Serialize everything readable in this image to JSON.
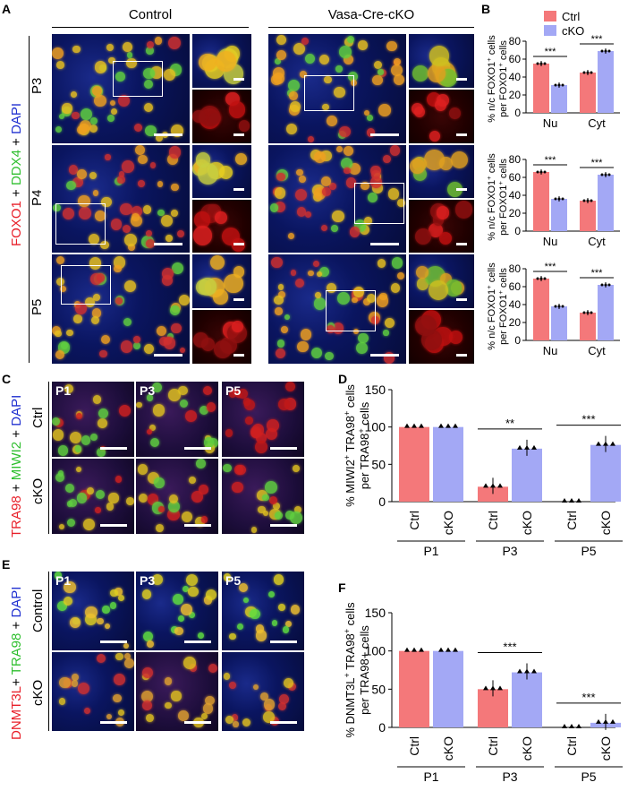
{
  "panels": {
    "A": {
      "letter": "A",
      "group_control": "Control",
      "group_cko": "Vasa-Cre-cKO",
      "stain_label": [
        "FOXO1",
        " + ",
        "DDX4",
        " + ",
        "DAPI"
      ],
      "stain_colors": [
        "#e8202a",
        "#000000",
        "#2fbf2f",
        "#000000",
        "#2030d0"
      ],
      "rows": [
        "P3",
        "P4",
        "P5"
      ]
    },
    "B": {
      "letter": "B"
    },
    "C": {
      "letter": "C",
      "stain_label": [
        "TRA98",
        " + ",
        "MIWI2",
        " + ",
        "DAPI"
      ],
      "stain_colors": [
        "#e8202a",
        "#000000",
        "#2fbf2f",
        "#000000",
        "#2030d0"
      ],
      "rows": [
        "Ctrl",
        "cKO"
      ],
      "cols": [
        "P1",
        "P3",
        "P5"
      ]
    },
    "D": {
      "letter": "D"
    },
    "E": {
      "letter": "E",
      "stain_label": [
        "DNMT3L",
        "+ ",
        "TRA98",
        " + ",
        "DAPI"
      ],
      "stain_colors": [
        "#e8202a",
        "#000000",
        "#2fbf2f",
        "#000000",
        "#2030d0"
      ],
      "rows": [
        "Control",
        "cKO"
      ],
      "cols": [
        "P1",
        "P3",
        "P5"
      ]
    },
    "F": {
      "letter": "F"
    }
  },
  "chart_data": [
    {
      "id": "B1",
      "type": "bar",
      "legend": [
        {
          "name": "Ctrl",
          "color": "#f4787a"
        },
        {
          "name": "cKO",
          "color": "#a3a8f5"
        }
      ],
      "categories": [
        "Nu",
        "Cyt"
      ],
      "series": [
        {
          "name": "Ctrl",
          "values": [
            55,
            45
          ]
        },
        {
          "name": "cKO",
          "values": [
            31,
            69
          ]
        }
      ],
      "ylabel": [
        "% n/c FOXO1",
        "+",
        " cells"
      ],
      "ylabel2": [
        "per FOXO1",
        "+",
        " cells"
      ],
      "ylim": [
        0,
        80
      ],
      "yticks": [
        0,
        20,
        40,
        60,
        80
      ],
      "significance": [
        "***",
        "***"
      ]
    },
    {
      "id": "B2",
      "type": "bar",
      "categories": [
        "Nu",
        "Cyt"
      ],
      "series": [
        {
          "name": "Ctrl",
          "values": [
            66,
            34
          ]
        },
        {
          "name": "cKO",
          "values": [
            36,
            63
          ]
        }
      ],
      "ylabel": [
        "% n/c FOXO1",
        "+",
        " cells"
      ],
      "ylabel2": [
        "per FOXO1",
        "+",
        " cells"
      ],
      "ylim": [
        0,
        80
      ],
      "yticks": [
        0,
        20,
        40,
        60,
        80
      ],
      "significance": [
        "***",
        "***"
      ]
    },
    {
      "id": "B3",
      "type": "bar",
      "categories": [
        "Nu",
        "Cyt"
      ],
      "series": [
        {
          "name": "Ctrl",
          "values": [
            69,
            31
          ]
        },
        {
          "name": "cKO",
          "values": [
            38,
            62
          ]
        }
      ],
      "ylabel": [
        "% n/c FOXO1",
        "+",
        " cells"
      ],
      "ylabel2": [
        "per FOXO1",
        "+",
        " cells"
      ],
      "ylim": [
        0,
        80
      ],
      "yticks": [
        0,
        20,
        40,
        60,
        80
      ],
      "significance": [
        "***",
        "***"
      ]
    },
    {
      "id": "D",
      "type": "bar",
      "groups": [
        "P1",
        "P3",
        "P5"
      ],
      "bar_labels": [
        "Ctrl",
        "cKO",
        "Ctrl",
        "cKO",
        "Ctrl",
        "cKO"
      ],
      "values": [
        100,
        100,
        20,
        71,
        0,
        76
      ],
      "ylabel": [
        "% MIWI2",
        "+",
        " TRA98",
        "+",
        " cells"
      ],
      "ylabel2": [
        "per TRA98",
        "+",
        " cells"
      ],
      "ylim": [
        0,
        150
      ],
      "yticks": [
        0,
        50,
        100,
        150
      ],
      "significance": [
        {
          "group": "P3",
          "text": "**"
        },
        {
          "group": "P5",
          "text": "***"
        }
      ]
    },
    {
      "id": "F",
      "type": "bar",
      "groups": [
        "P1",
        "P3",
        "P5"
      ],
      "bar_labels": [
        "Ctrl",
        "cKO",
        "Ctrl",
        "cKO",
        "Ctrl",
        "cKO"
      ],
      "values": [
        100,
        100,
        50,
        72,
        0,
        6
      ],
      "ylabel": [
        "% DNMT3L",
        "+",
        " TRA98",
        "+",
        " cells"
      ],
      "ylabel2": [
        "per TRA98+ cells"
      ],
      "ylim": [
        0,
        150
      ],
      "yticks": [
        0,
        50,
        100,
        150
      ],
      "significance": [
        {
          "group": "P3",
          "text": "***"
        },
        {
          "group": "P5",
          "text": "***"
        }
      ]
    }
  ]
}
